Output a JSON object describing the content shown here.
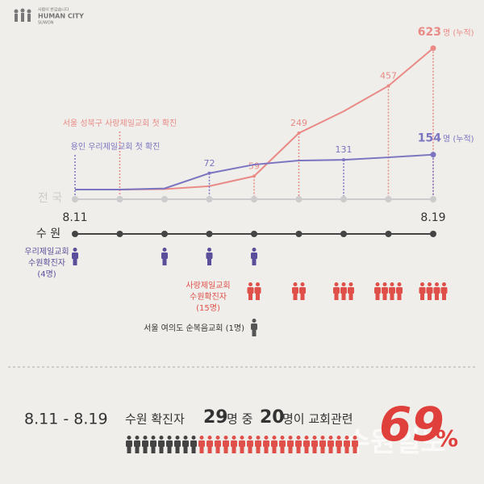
{
  "logo": {
    "tagline": "사람이 반갑습니다",
    "name": "HUMAN CITY",
    "city": "SUWON"
  },
  "chart_data": {
    "type": "line",
    "axis_label": "전 국",
    "categories": [
      "8.11",
      null,
      null,
      null,
      null,
      null,
      null,
      null,
      "8.19"
    ],
    "ylim": [
      0,
      640
    ],
    "series": [
      {
        "name": "서울 성북구 사랑제일교회 첫 확진",
        "color": "#e98a86",
        "values": [
          0,
          0,
          2,
          15,
          59,
          249,
          345,
          457,
          623
        ],
        "value_labels": [
          null,
          null,
          null,
          null,
          "59",
          "249",
          null,
          "457",
          "623"
        ],
        "unit_note": "명 (누적)"
      },
      {
        "name": "용인 우리제일교회 첫 확진",
        "color": "#7b74c0",
        "values": [
          0,
          0,
          5,
          72,
          110,
          128,
          131,
          142,
          154
        ],
        "value_labels": [
          null,
          null,
          null,
          "72",
          null,
          null,
          "131",
          null,
          "154"
        ],
        "unit_note": "명 (누적)"
      }
    ]
  },
  "suwon": {
    "label": "수 원",
    "groups": [
      {
        "label": [
          "우리제일교회",
          "수원확진자",
          "(4명)"
        ],
        "color": "#5b4f9c",
        "counts": [
          1,
          0,
          1,
          1,
          1,
          0,
          0,
          0,
          0
        ]
      },
      {
        "label": [
          "사랑제일교회",
          "수원확진자",
          "(15명)"
        ],
        "color": "#e0504a",
        "counts": [
          0,
          0,
          0,
          0,
          2,
          2,
          3,
          4,
          4
        ]
      },
      {
        "label": [
          "서울 여의도 순복음교회 (1명)"
        ],
        "color": "#555555",
        "counts": [
          0,
          0,
          0,
          0,
          1,
          0,
          0,
          0,
          0
        ]
      }
    ]
  },
  "summary": {
    "period": "8.11 - 8.19",
    "subject": "수원 확진자",
    "total": 29,
    "mid": "명 중",
    "church": 20,
    "tail": "명이 교회관련",
    "percent": 69,
    "percent_sign": "%",
    "watermark": "수원일보"
  }
}
